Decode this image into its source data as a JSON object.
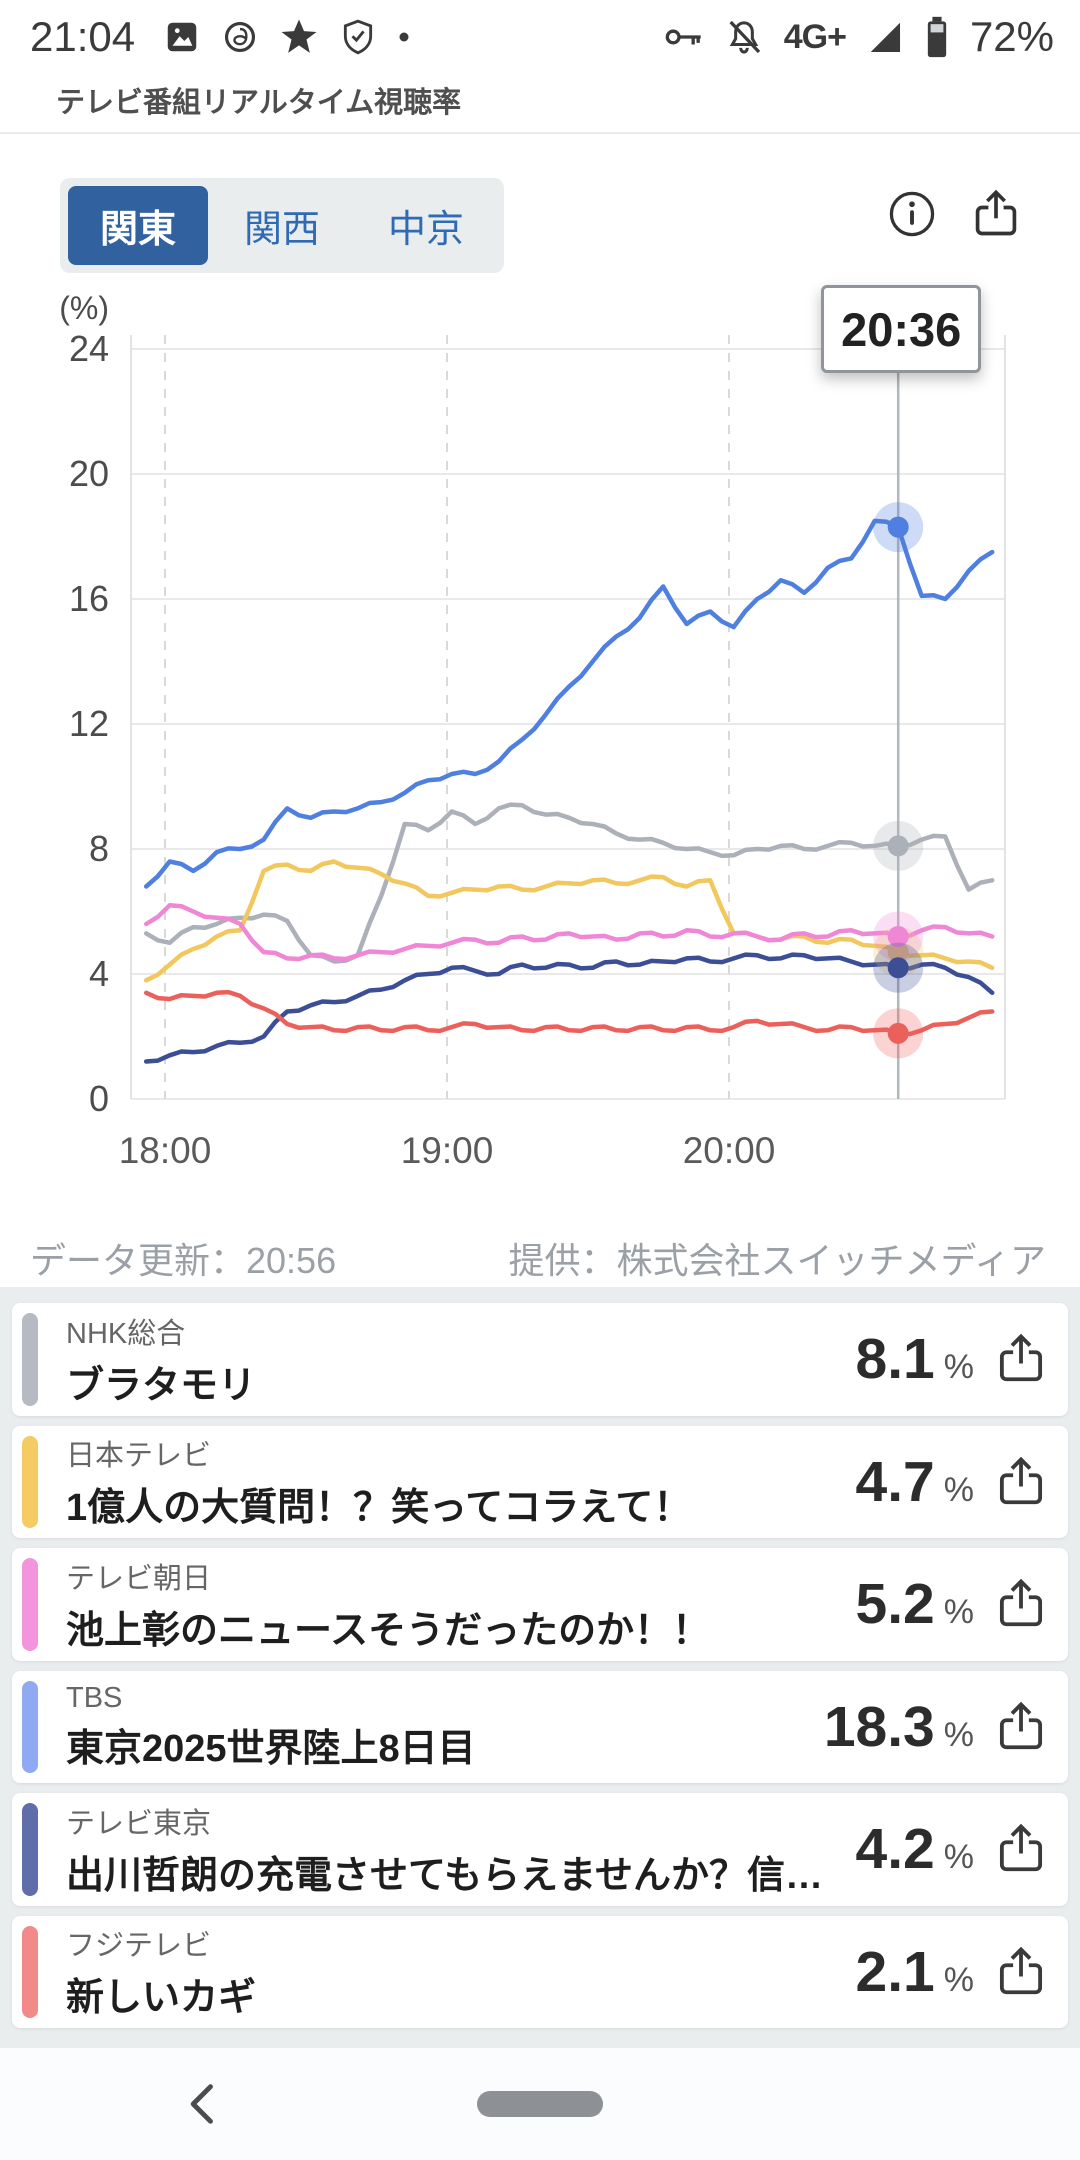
{
  "status_bar": {
    "time": "21:04",
    "network": "4G+",
    "battery": "72%"
  },
  "app_bar": {
    "title": "テレビ番組リアルタイム視聴率"
  },
  "controls": {
    "tabs": [
      {
        "label": "関東",
        "selected": true
      },
      {
        "label": "関西",
        "selected": false
      },
      {
        "label": "中京",
        "selected": false
      }
    ]
  },
  "tooltip": {
    "time": "20:36"
  },
  "chart_data": {
    "type": "line",
    "title": "",
    "ylabel": "(%)",
    "ylim": [
      0,
      24
    ],
    "yticks": [
      0,
      4,
      8,
      12,
      16,
      20,
      24
    ],
    "xticks": [
      {
        "label": "18:00",
        "min": 0
      },
      {
        "label": "19:00",
        "min": 60
      },
      {
        "label": "20:00",
        "min": 120
      }
    ],
    "x_start_min": -4,
    "x_step_min": 5,
    "cursor_min": 156,
    "cursor_label": "20:36",
    "grid": true,
    "series": [
      {
        "name": "NHK総合",
        "color": "#acb0b8",
        "values": [
          5.3,
          5.0,
          5.5,
          5.6,
          5.8,
          5.9,
          5.7,
          4.6,
          4.4,
          4.6,
          6.5,
          8.8,
          8.6,
          9.2,
          8.8,
          9.3,
          9.4,
          9.1,
          9.0,
          8.8,
          8.5,
          8.3,
          8.2,
          8.0,
          7.9,
          7.8,
          8.0,
          8.1,
          8.0,
          8.1,
          8.2,
          8.1,
          8.1,
          8.3,
          8.4,
          6.7,
          7.0
        ],
        "cursor_value": 8.1
      },
      {
        "name": "日本テレビ",
        "color": "#f2c85e",
        "values": [
          3.8,
          4.3,
          4.8,
          5.2,
          5.4,
          7.3,
          7.5,
          7.3,
          7.6,
          7.4,
          7.2,
          6.9,
          6.5,
          6.6,
          6.7,
          6.8,
          6.7,
          6.8,
          6.9,
          7.0,
          6.9,
          7.0,
          7.1,
          6.8,
          7.0,
          5.3,
          5.2,
          5.1,
          5.2,
          5.0,
          5.1,
          4.9,
          4.7,
          4.6,
          4.5,
          4.4,
          4.2
        ],
        "cursor_value": 4.7
      },
      {
        "name": "テレビ朝日",
        "color": "#ef87d6",
        "values": [
          5.6,
          6.2,
          6.0,
          5.8,
          5.6,
          4.7,
          4.5,
          4.6,
          4.5,
          4.6,
          4.7,
          4.8,
          4.9,
          5.0,
          5.1,
          5.0,
          5.2,
          5.1,
          5.3,
          5.2,
          5.1,
          5.3,
          5.2,
          5.4,
          5.2,
          5.3,
          5.2,
          5.1,
          5.3,
          5.2,
          5.4,
          5.3,
          5.2,
          5.4,
          5.5,
          5.3,
          5.2
        ],
        "cursor_value": 5.2
      },
      {
        "name": "TBS",
        "color": "#4f7fe0",
        "values": [
          6.8,
          7.6,
          7.3,
          7.9,
          8.0,
          8.3,
          9.3,
          9.0,
          9.2,
          9.3,
          9.5,
          9.8,
          10.2,
          10.4,
          10.4,
          10.8,
          11.5,
          12.3,
          13.2,
          14.0,
          14.8,
          15.4,
          16.4,
          15.2,
          15.6,
          15.1,
          16.0,
          16.6,
          16.2,
          17.0,
          17.3,
          18.5,
          18.3,
          16.1,
          16.0,
          16.9,
          17.5
        ],
        "cursor_value": 18.3
      },
      {
        "name": "テレビ東京",
        "color": "#3c4e96",
        "values": [
          1.2,
          1.4,
          1.5,
          1.7,
          1.8,
          2.0,
          2.8,
          3.0,
          3.1,
          3.3,
          3.5,
          3.8,
          4.0,
          4.2,
          4.1,
          4.0,
          4.3,
          4.2,
          4.3,
          4.2,
          4.4,
          4.3,
          4.4,
          4.5,
          4.4,
          4.5,
          4.6,
          4.5,
          4.6,
          4.5,
          4.4,
          4.3,
          4.2,
          4.3,
          4.2,
          3.9,
          3.4
        ],
        "cursor_value": 4.2
      },
      {
        "name": "フジテレビ",
        "color": "#ec605c",
        "values": [
          3.4,
          3.2,
          3.3,
          3.4,
          3.3,
          2.9,
          2.4,
          2.3,
          2.2,
          2.3,
          2.2,
          2.3,
          2.2,
          2.3,
          2.4,
          2.3,
          2.2,
          2.3,
          2.2,
          2.3,
          2.2,
          2.3,
          2.2,
          2.3,
          2.2,
          2.3,
          2.5,
          2.4,
          2.3,
          2.2,
          2.3,
          2.2,
          2.1,
          2.2,
          2.4,
          2.6,
          2.8
        ],
        "cursor_value": 2.1
      }
    ]
  },
  "footer": {
    "updated": "データ更新：20:56",
    "provider": "提供：株式会社スイッチメディア"
  },
  "channels": [
    {
      "station": "NHK総合",
      "program": "ブラタモリ",
      "rating": "8.1",
      "unit": "%",
      "color": "#b6bac2"
    },
    {
      "station": "日本テレビ",
      "program": "1億人の大質問！？笑ってコラえて！",
      "rating": "4.7",
      "unit": "%",
      "color": "#f5cb63"
    },
    {
      "station": "テレビ朝日",
      "program": "池上彰のニュースそうだったのか！！",
      "rating": "5.2",
      "unit": "%",
      "color": "#f295dc"
    },
    {
      "station": "TBS",
      "program": "東京2025世界陸上8日目",
      "rating": "18.3",
      "unit": "%",
      "color": "#8fa9f2"
    },
    {
      "station": "テレビ東京",
      "program": "出川哲朗の充電させてもらえませんか？信…",
      "rating": "4.2",
      "unit": "%",
      "color": "#5f6dab"
    },
    {
      "station": "フジテレビ",
      "program": "新しいカギ",
      "rating": "2.1",
      "unit": "%",
      "color": "#f28a8a"
    }
  ],
  "colors": {
    "accent_blue": "#31629f",
    "tab_text_blue": "#2f6ab5"
  },
  "icons": {
    "info": "circle-i",
    "share": "box-arrow-up",
    "back": "chevron-left",
    "home": "pill",
    "signal": "filled-triangle",
    "battery": "battery-vertical",
    "bell": "bell-off",
    "key": "key",
    "image": "photo",
    "threads": "at-circle",
    "star": "star",
    "shield": "shield-check",
    "dot": "dot"
  }
}
